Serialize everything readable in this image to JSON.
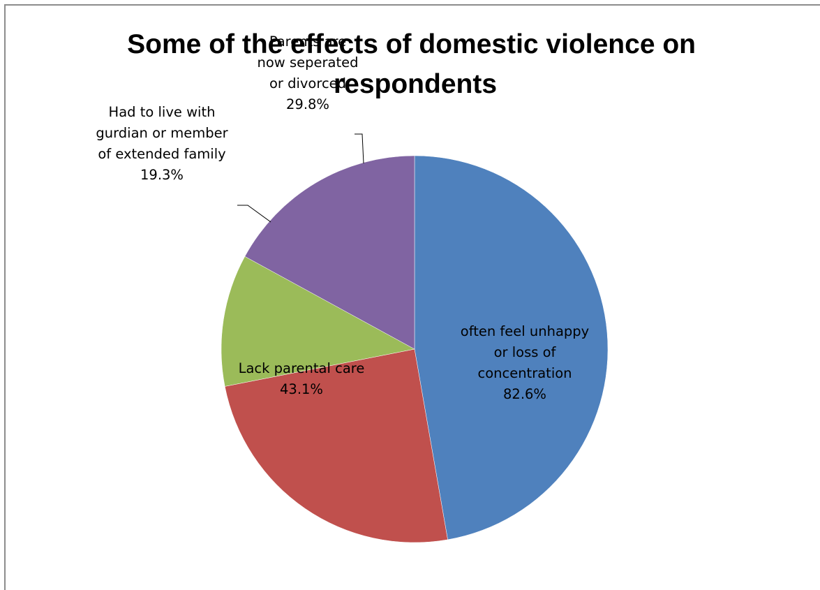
{
  "chart_data": {
    "type": "pie",
    "title": "Some of the effects of domestic violence on respondents",
    "title_lines": [
      "Some of the effects of domestic violence on",
      "respondents"
    ],
    "legend": "none",
    "series": [
      {
        "values": [
          82.6,
          43.1,
          19.3,
          29.8
        ],
        "labels": [
          "often feel unhappy or loss of concentration",
          "Lack  parental care",
          "Had to live with gurdian or member of extended family",
          "Parents are now seperated or divorced"
        ],
        "label_lines": [
          [
            "often feel unhappy",
            "or loss of",
            "concentration"
          ],
          [
            "Lack  parental care"
          ],
          [
            "Had to live with",
            "gurdian or member",
            "of extended family"
          ],
          [
            "Parents are",
            "now seperated",
            "or divorced"
          ]
        ],
        "value_labels": [
          "82.6%",
          "43.1%",
          "19.3%",
          "29.8%"
        ],
        "colors": [
          "#4f81bd",
          "#c0504d",
          "#9bbb59",
          "#8064a2"
        ]
      }
    ]
  }
}
